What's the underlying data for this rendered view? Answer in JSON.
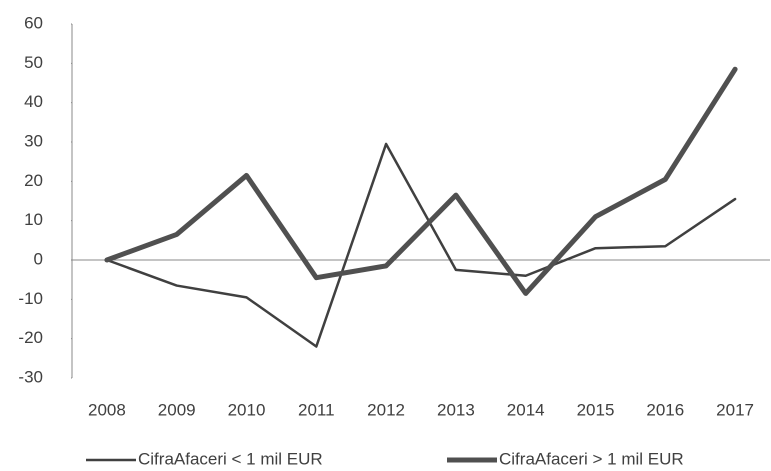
{
  "chart_data": {
    "type": "line",
    "categories": [
      "2008",
      "2009",
      "2010",
      "2011",
      "2012",
      "2013",
      "2014",
      "2015",
      "2016",
      "2017"
    ],
    "series": [
      {
        "name": "CifraAfaceri < 1 mil EUR",
        "color": "#404040",
        "width": 2.5,
        "values": [
          0,
          -6.5,
          -9.5,
          -22,
          29.5,
          -2.5,
          -4,
          3,
          3.5,
          15.5
        ]
      },
      {
        "name": "CifraAfaceri > 1 mil EUR",
        "color": "#505050",
        "width": 5,
        "values": [
          0,
          6.5,
          21.5,
          -4.5,
          -1.5,
          16.5,
          -8.5,
          11,
          20.5,
          48.5
        ]
      }
    ],
    "ylim": [
      -30,
      60
    ],
    "yticks": [
      -30,
      -20,
      -10,
      0,
      10,
      20,
      30,
      40,
      50,
      60
    ],
    "grid": false,
    "legend": "bottom"
  }
}
